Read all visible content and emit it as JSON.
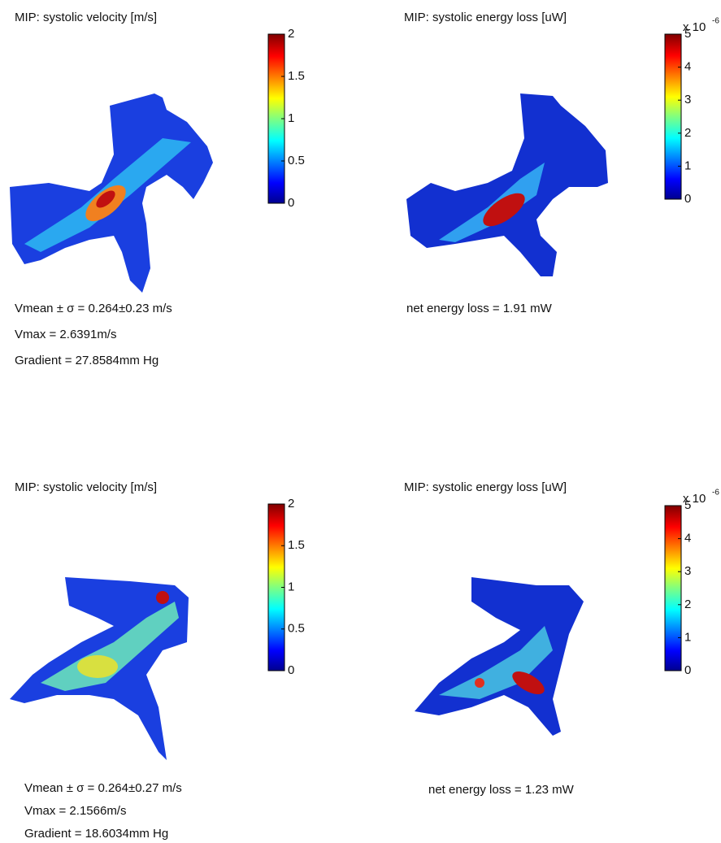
{
  "panels": [
    {
      "title": "MIP: systolic velocity [m/s]",
      "colorbar": {
        "lim": [
          0,
          2
        ],
        "ticks": [
          0,
          0.5,
          1,
          1.5,
          2
        ]
      },
      "annotations": [
        "Vmean ± σ = 0.264±0.23 m/s",
        "Vmax = 2.6391m/s",
        "Gradient = 27.8584mm Hg"
      ]
    },
    {
      "title": "MIP: systolic energy loss [uW]",
      "colorbar": {
        "lim": [
          0,
          5
        ],
        "ticks": [
          0,
          1,
          2,
          3,
          4,
          5
        ],
        "multiplier": "x 10",
        "exponent": "-6"
      },
      "annotations": [
        "net energy loss = 1.91 mW"
      ]
    },
    {
      "title": "MIP: systolic velocity [m/s]",
      "colorbar": {
        "lim": [
          0,
          2
        ],
        "ticks": [
          0,
          0.5,
          1,
          1.5,
          2
        ]
      },
      "annotations": [
        "Vmean ± σ = 0.264±0.27 m/s",
        "Vmax = 2.1566m/s",
        "Gradient = 18.6034mm Hg"
      ]
    },
    {
      "title": "MIP: systolic energy loss [uW]",
      "colorbar": {
        "lim": [
          0,
          5
        ],
        "ticks": [
          0,
          1,
          2,
          3,
          4,
          5
        ],
        "multiplier": "x 10",
        "exponent": "-6"
      },
      "annotations": [
        "net energy loss = 1.23 mW"
      ]
    }
  ]
}
